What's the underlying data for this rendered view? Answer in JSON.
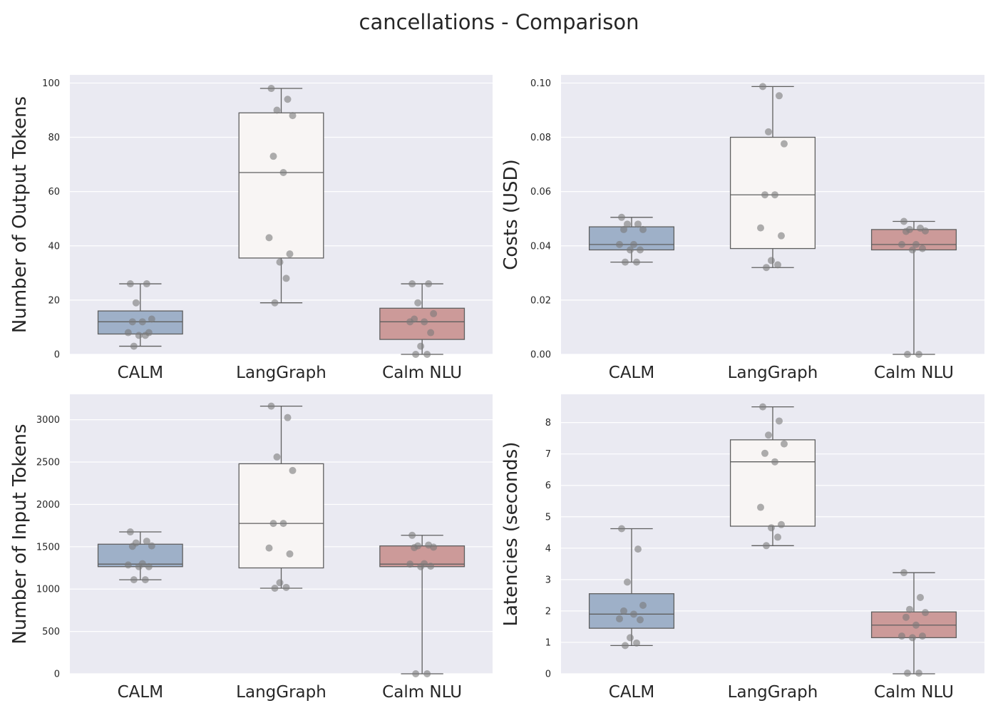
{
  "title": "cancellations - Comparison",
  "colors": {
    "panel_bg": "#eaeaf2",
    "grid": "#ffffff",
    "edge": "#5f5f5f",
    "point": "#7a7a7a",
    "text": "#262626",
    "CALM": "#9eb0c8",
    "LangGraph": "#f8f5f4",
    "Calm NLU": "#cc9a99"
  },
  "chart_data": [
    {
      "type": "box",
      "ylabel": "Number of Output Tokens",
      "categories": [
        "CALM",
        "LangGraph",
        "Calm NLU"
      ],
      "ylim": [
        0,
        103
      ],
      "yticks": [
        0,
        20,
        40,
        60,
        80,
        100
      ],
      "tick_labels": [
        "0",
        "20",
        "40",
        "60",
        "80",
        "100"
      ],
      "boxes": [
        {
          "min": 3,
          "q1": 7.5,
          "median": 12,
          "q3": 16,
          "max": 26
        },
        {
          "min": 19,
          "q1": 35.5,
          "median": 67,
          "q3": 89,
          "max": 98
        },
        {
          "min": 0,
          "q1": 5.5,
          "median": 12,
          "q3": 17,
          "max": 26
        }
      ],
      "points": [
        [
          26,
          26,
          19,
          13,
          12,
          12,
          8,
          8,
          7,
          7,
          3
        ],
        [
          98,
          94,
          90,
          88,
          73,
          67,
          43,
          37,
          34,
          28,
          19
        ],
        [
          26,
          26,
          19,
          15,
          13,
          12,
          12,
          8,
          3,
          0,
          0
        ]
      ]
    },
    {
      "type": "box",
      "ylabel": "Costs (USD)",
      "categories": [
        "CALM",
        "LangGraph",
        "Calm NLU"
      ],
      "ylim": [
        0,
        0.103
      ],
      "yticks": [
        0,
        0.02,
        0.04,
        0.06,
        0.08,
        0.1
      ],
      "tick_labels": [
        "0.00",
        "0.02",
        "0.04",
        "0.06",
        "0.08",
        "0.10"
      ],
      "boxes": [
        {
          "min": 0.034,
          "q1": 0.0385,
          "median": 0.0405,
          "q3": 0.047,
          "max": 0.0505
        },
        {
          "min": 0.032,
          "q1": 0.039,
          "median": 0.0588,
          "q3": 0.08,
          "max": 0.0987
        },
        {
          "min": 0,
          "q1": 0.0385,
          "median": 0.0405,
          "q3": 0.046,
          "max": 0.049
        }
      ],
      "points": [
        [
          0.0505,
          0.048,
          0.048,
          0.046,
          0.046,
          0.0405,
          0.0405,
          0.0385,
          0.0385,
          0.034,
          0.034
        ],
        [
          0.0987,
          0.0953,
          0.082,
          0.0776,
          0.0588,
          0.0588,
          0.0466,
          0.0437,
          0.0346,
          0.033,
          0.032
        ],
        [
          0.049,
          0.0465,
          0.046,
          0.0455,
          0.0453,
          0.0405,
          0.0405,
          0.039,
          0.0385,
          0,
          0
        ]
      ]
    },
    {
      "type": "box",
      "ylabel": "Number of Input Tokens",
      "categories": [
        "CALM",
        "LangGraph",
        "Calm NLU"
      ],
      "ylim": [
        0,
        3300
      ],
      "yticks": [
        0,
        500,
        1000,
        1500,
        2000,
        2500,
        3000
      ],
      "tick_labels": [
        "0",
        "500",
        "1000",
        "1500",
        "2000",
        "2500",
        "3000"
      ],
      "boxes": [
        {
          "min": 1110,
          "q1": 1265,
          "median": 1295,
          "q3": 1530,
          "max": 1675
        },
        {
          "min": 1010,
          "q1": 1250,
          "median": 1775,
          "q3": 2480,
          "max": 3160
        },
        {
          "min": 0,
          "q1": 1265,
          "median": 1295,
          "q3": 1510,
          "max": 1635
        }
      ],
      "points": [
        [
          1675,
          1565,
          1545,
          1510,
          1505,
          1300,
          1285,
          1265,
          1265,
          1110,
          1110
        ],
        [
          3160,
          3025,
          2560,
          2400,
          1775,
          1775,
          1485,
          1415,
          1075,
          1020,
          1010
        ],
        [
          1635,
          1520,
          1510,
          1495,
          1490,
          1300,
          1295,
          1270,
          1265,
          0,
          0
        ]
      ]
    },
    {
      "type": "box",
      "ylabel": "Latencies (seconds)",
      "categories": [
        "CALM",
        "LangGraph",
        "Calm NLU"
      ],
      "ylim": [
        0,
        8.9
      ],
      "yticks": [
        0,
        1,
        2,
        3,
        4,
        5,
        6,
        7,
        8
      ],
      "tick_labels": [
        "0",
        "1",
        "2",
        "3",
        "4",
        "5",
        "6",
        "7",
        "8"
      ],
      "boxes": [
        {
          "min": 0.9,
          "q1": 1.45,
          "median": 1.9,
          "q3": 2.55,
          "max": 4.62
        },
        {
          "min": 4.08,
          "q1": 4.7,
          "median": 6.75,
          "q3": 7.45,
          "max": 8.5
        },
        {
          "min": 0,
          "q1": 1.15,
          "median": 1.55,
          "q3": 1.97,
          "max": 3.22
        }
      ],
      "points": [
        [
          4.62,
          3.97,
          2.92,
          2.18,
          2.0,
          1.9,
          1.75,
          1.72,
          1.15,
          0.98,
          0.9
        ],
        [
          8.5,
          8.05,
          7.6,
          7.32,
          7.02,
          6.75,
          5.3,
          4.75,
          4.65,
          4.35,
          4.08
        ],
        [
          3.22,
          2.43,
          2.05,
          1.95,
          1.8,
          1.55,
          1.2,
          1.2,
          1.15,
          0.02,
          0.02
        ]
      ]
    }
  ]
}
